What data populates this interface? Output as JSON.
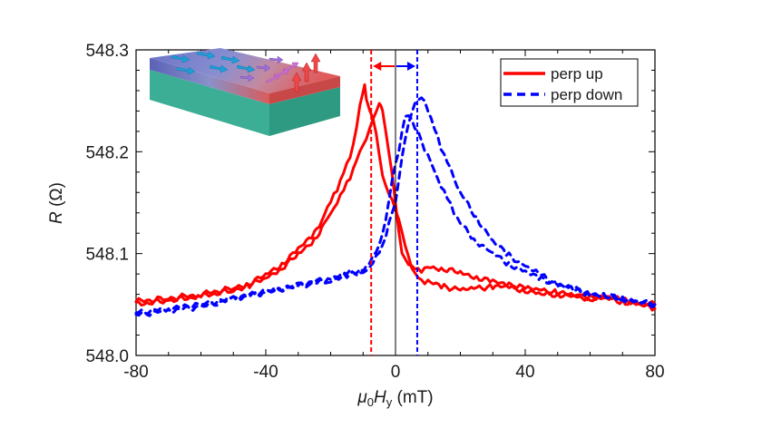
{
  "chart_data": {
    "type": "line",
    "title": "",
    "xlabel": {
      "prefix": "μ",
      "prefix_sub": "0",
      "main": "H",
      "main_sub": "y",
      "unit": " (mT)"
    },
    "ylabel": {
      "main": "R",
      "unit": " (Ω)"
    },
    "xlim": [
      -80,
      80
    ],
    "ylim": [
      548.0,
      548.3
    ],
    "x_ticks": [
      -80,
      -40,
      0,
      40,
      80
    ],
    "x_tick_labels": [
      "-80",
      "-40",
      "0",
      "40",
      "80"
    ],
    "x_minor_step": 10,
    "y_ticks": [
      548.0,
      548.1,
      548.2,
      548.3
    ],
    "y_tick_labels": [
      "548.0",
      "548.1",
      "548.2",
      "548.3"
    ],
    "y_minor_step": 0.02,
    "grid": false,
    "legend": {
      "placement": "top-right",
      "entries": [
        "perp up",
        "perp down"
      ]
    },
    "series": [
      {
        "name": "perp up",
        "color": "#ff0000",
        "style": "solid",
        "branches": [
          {
            "x": [
              -80,
              -70,
              -60,
              -50,
              -45,
              -40,
              -35,
              -30,
              -25,
              -22,
              -20,
              -18,
              -16,
              -14,
              -12,
              -11,
              -10,
              -9.5,
              -9,
              -8,
              -7,
              -6,
              -5,
              -4,
              -3,
              -2,
              -1,
              0,
              1,
              2,
              3,
              4,
              5,
              6,
              8,
              10,
              15,
              20,
              25,
              30,
              35,
              40,
              45,
              50,
              55,
              60,
              65,
              70,
              75,
              80
            ],
            "y": [
              548.053,
              548.056,
              548.06,
              548.066,
              548.071,
              548.079,
              548.09,
              548.104,
              548.12,
              548.138,
              548.15,
              548.164,
              548.18,
              548.196,
              548.224,
              548.244,
              548.258,
              548.263,
              548.252,
              548.24,
              548.235,
              548.22,
              548.198,
              548.178,
              548.165,
              548.158,
              548.15,
              548.142,
              548.133,
              548.122,
              548.11,
              548.098,
              548.088,
              548.08,
              548.074,
              548.072,
              548.068,
              548.064,
              548.066,
              548.068,
              548.067,
              548.064,
              548.06,
              548.06,
              548.058,
              548.057,
              548.058,
              548.054,
              548.052,
              548.05
            ]
          },
          {
            "x": [
              -80,
              -70,
              -60,
              -50,
              -45,
              -40,
              -35,
              -30,
              -25,
              -22,
              -20,
              -18,
              -16,
              -14,
              -12,
              -10,
              -8,
              -7,
              -6,
              -5,
              -4.5,
              -4,
              -3,
              -2,
              -1,
              0,
              1,
              2,
              3,
              4,
              5,
              6,
              8,
              10,
              15,
              20,
              25,
              30,
              35,
              40,
              45,
              50,
              55,
              60,
              65,
              70,
              75,
              80
            ],
            "y": [
              548.05,
              548.054,
              548.058,
              548.064,
              548.069,
              548.076,
              548.086,
              548.099,
              548.114,
              548.128,
              548.138,
              548.15,
              548.162,
              548.176,
              548.192,
              548.208,
              548.222,
              548.23,
              548.238,
              548.245,
              548.246,
              548.24,
              548.222,
              548.2,
              548.178,
              548.15,
              548.12,
              548.1,
              548.092,
              548.089,
              548.088,
              548.086,
              548.084,
              548.087,
              548.085,
              548.081,
              548.077,
              548.072,
              548.07,
              548.066,
              548.064,
              548.062,
              548.059,
              548.056,
              548.056,
              548.053,
              548.05,
              548.046
            ]
          }
        ]
      },
      {
        "name": "perp down",
        "color": "#0000ff",
        "style": "dashed",
        "branches": [
          {
            "x": [
              -80,
              -70,
              -60,
              -50,
              -40,
              -30,
              -20,
              -15,
              -10,
              -8,
              -6,
              -4,
              -2,
              0,
              1,
              2,
              3,
              4,
              5,
              6,
              7,
              8,
              9,
              10,
              12,
              14,
              16,
              18,
              20,
              25,
              30,
              35,
              40,
              45,
              50,
              55,
              60,
              65,
              70,
              75,
              80
            ],
            "y": [
              548.04,
              548.044,
              548.048,
              548.055,
              548.062,
              548.068,
              548.074,
              548.078,
              548.082,
              548.088,
              548.096,
              548.108,
              548.128,
              548.15,
              548.172,
              548.195,
              548.215,
              548.228,
              548.24,
              548.246,
              548.25,
              548.251,
              548.248,
              548.24,
              548.222,
              548.205,
              548.19,
              548.176,
              548.16,
              548.135,
              548.112,
              548.098,
              548.088,
              548.078,
              548.07,
              548.064,
              548.06,
              548.058,
              548.056,
              548.054,
              548.05
            ]
          },
          {
            "x": [
              -80,
              -70,
              -60,
              -50,
              -40,
              -30,
              -20,
              -15,
              -10,
              -8,
              -6,
              -4,
              -2,
              -1,
              0,
              1,
              2,
              3,
              4,
              5,
              6,
              7,
              8,
              10,
              12,
              14,
              16,
              18,
              20,
              25,
              30,
              35,
              40,
              45,
              50,
              55,
              60,
              65,
              70,
              75,
              80
            ],
            "y": [
              548.042,
              548.046,
              548.05,
              548.056,
              548.063,
              548.069,
              548.076,
              548.08,
              548.085,
              548.092,
              548.102,
              548.12,
              548.15,
              548.172,
              548.186,
              548.2,
              548.22,
              548.236,
              548.238,
              548.232,
              548.224,
              548.218,
              548.21,
              548.195,
              548.18,
              548.166,
              548.154,
              548.142,
              548.13,
              548.112,
              548.1,
              548.09,
              548.082,
              548.075,
              548.07,
              548.065,
              548.061,
              548.058,
              548.055,
              548.053,
              548.049
            ]
          }
        ]
      }
    ],
    "annotations": {
      "zero_line_x": 0,
      "red_dashed_line_x": -7.5,
      "blue_dashed_line_x": 6.7,
      "arrow_red_direction": "left",
      "arrow_blue_direction": "right",
      "red_color": "#ff0000",
      "blue_color": "#0000ff",
      "inset": "illustration: thin film slab with in-plane cyan arrows on left domain, purple tilted arrows in wall, red up arrows on right domain"
    }
  }
}
